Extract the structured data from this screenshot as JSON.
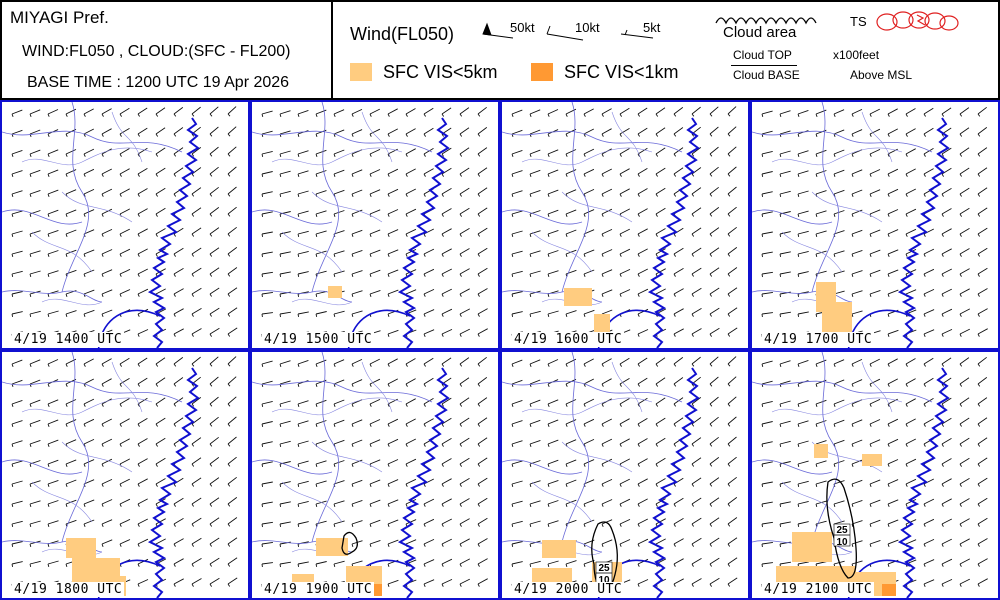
{
  "header": {
    "region": "MIYAGI Pref.",
    "levels": "WIND:FL050 , CLOUD:(SFC - FL200)",
    "base_time": "BASE TIME : 1200 UTC 19 Apr 2026"
  },
  "legend": {
    "wind_title": "Wind(FL050)",
    "wind_50kt": "50kt",
    "wind_10kt": "10kt",
    "wind_5kt": "5kt",
    "cloud_area": "Cloud area",
    "ts": "TS",
    "cloud_top": "Cloud TOP",
    "cloud_base": "Cloud BASE",
    "units": "x100feet",
    "above_msl": "Above MSL",
    "vis5_label": "SFC VIS<5km",
    "vis1_label": "SFC VIS<1km",
    "vis5_color": "#ffcc80",
    "vis1_color": "#ff9933",
    "ts_color": "#e02020"
  },
  "panels": [
    {
      "time": "4/19  1400 UTC"
    },
    {
      "time": "4/19  1500 UTC"
    },
    {
      "time": "4/19  1600 UTC"
    },
    {
      "time": "4/19  1700 UTC"
    },
    {
      "time": "4/19  1800 UTC"
    },
    {
      "time": "4/19  1900 UTC"
    },
    {
      "time": "4/19  2000 UTC",
      "cloud_top": "25",
      "cloud_base": "10"
    },
    {
      "time": "4/19  2100 UTC",
      "cloud_top": "25",
      "cloud_base": "10"
    }
  ]
}
